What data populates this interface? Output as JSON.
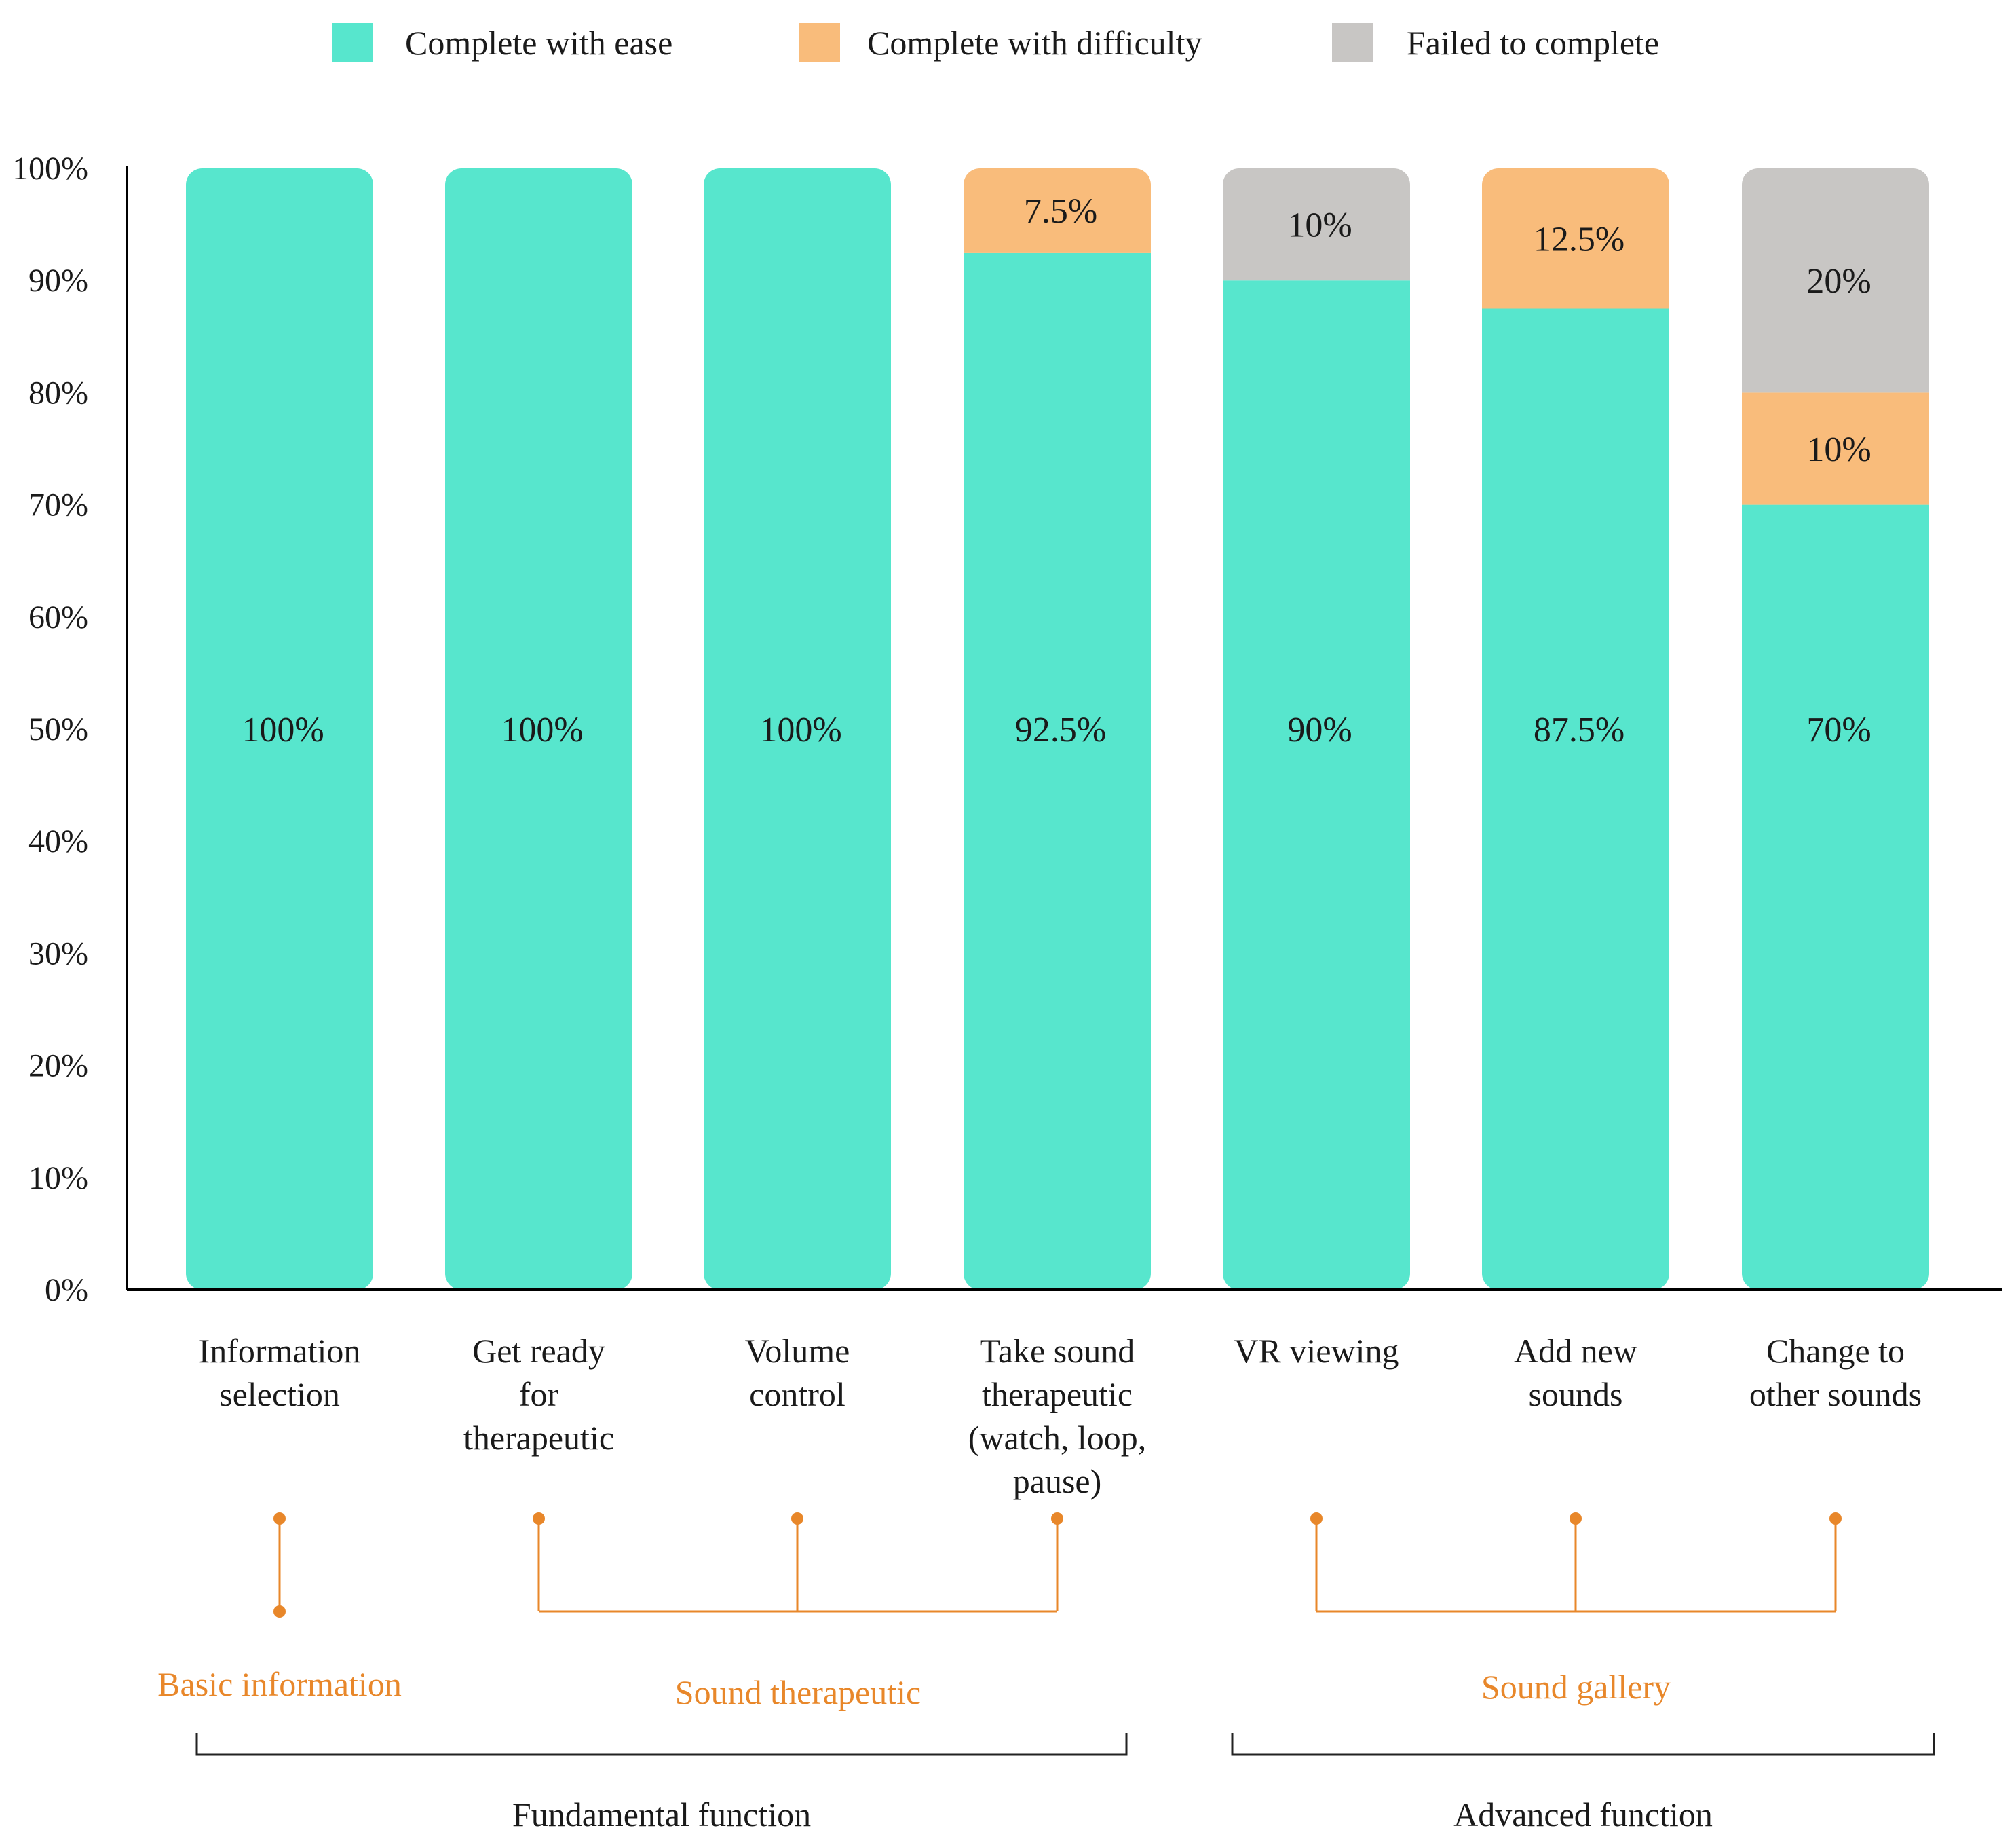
{
  "chart_data": {
    "type": "bar",
    "stacked": true,
    "title": "",
    "xlabel": "",
    "ylabel": "",
    "ylim": [
      0,
      100
    ],
    "yticks": [
      0,
      10,
      20,
      30,
      40,
      50,
      60,
      70,
      80,
      90,
      100
    ],
    "ytick_labels": [
      "0%",
      "10%",
      "20%",
      "30%",
      "40%",
      "50%",
      "60%",
      "70%",
      "80%",
      "90%",
      "100%"
    ],
    "grid": false,
    "legend_position": "top-center",
    "categories": [
      [
        "Information",
        "selection"
      ],
      [
        "Get ready",
        "for",
        "therapeutic"
      ],
      [
        "Volume",
        "control"
      ],
      [
        "Take sound",
        "therapeutic",
        "(watch, loop,",
        "pause)"
      ],
      [
        "VR viewing"
      ],
      [
        "Add new",
        "sounds"
      ],
      [
        "Change to",
        "other sounds"
      ]
    ],
    "series": [
      {
        "name": "Complete with ease",
        "color": "#57E6CD",
        "values": [
          100,
          100,
          100,
          92.5,
          90,
          87.5,
          70
        ],
        "labels": [
          "100%",
          "100%",
          "100%",
          "92.5%",
          "90%",
          "87.5%",
          "70%"
        ]
      },
      {
        "name": "Complete with difficulty",
        "color": "#F9BC7B",
        "values": [
          0,
          0,
          0,
          7.5,
          0,
          12.5,
          10
        ],
        "labels": [
          "",
          "",
          "",
          "7.5%",
          "",
          "12.5%",
          "10%"
        ]
      },
      {
        "name": "Failed to complete",
        "color": "#C8C6C4",
        "values": [
          0,
          0,
          0,
          0,
          10,
          0,
          20
        ],
        "labels": [
          "",
          "",
          "",
          "",
          "10%",
          "",
          "20%"
        ]
      }
    ],
    "groups": [
      {
        "name": "Basic information",
        "bars": [
          0
        ]
      },
      {
        "name": "Sound therapeutic",
        "bars": [
          1,
          2,
          3
        ]
      },
      {
        "name": "Sound gallery",
        "bars": [
          4,
          5,
          6
        ]
      }
    ],
    "super_groups": [
      {
        "name": "Fundamental function",
        "bars": [
          0,
          3
        ]
      },
      {
        "name": "Advanced function",
        "bars": [
          4,
          6
        ]
      }
    ],
    "colors": {
      "axis": "#000000",
      "group_accent": "#E8872A",
      "text": "#1a1a1a"
    }
  }
}
